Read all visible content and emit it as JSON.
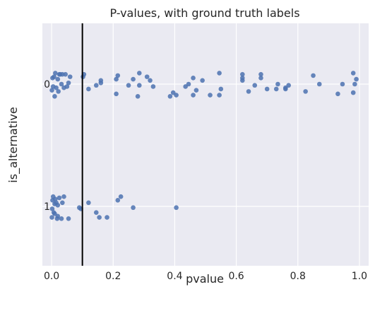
{
  "chart_data": {
    "type": "scatter",
    "title": "P-values, with ground truth labels",
    "xlabel": "pvalue",
    "ylabel": "is_alternative",
    "xlim": [
      -0.03,
      1.03
    ],
    "xticks": [
      0.0,
      0.2,
      0.4,
      0.6,
      0.8,
      1.0
    ],
    "xtick_labels": [
      "0.0",
      "0.2",
      "0.4",
      "0.6",
      "0.8",
      "1.0"
    ],
    "categories": [
      "0",
      "1"
    ],
    "grid": true,
    "background": "#eaeaf2",
    "point_color": "#4c72b0",
    "vline": {
      "x": 0.1,
      "color": "#000000"
    },
    "series": [
      {
        "category": "0",
        "points": [
          [
            0.001,
            0.05
          ],
          [
            0.003,
            -0.05
          ],
          [
            0.005,
            0.02
          ],
          [
            0.008,
            -0.06
          ],
          [
            0.01,
            0.1
          ],
          [
            0.012,
            -0.09
          ],
          [
            0.015,
            0.03
          ],
          [
            0.02,
            -0.04
          ],
          [
            0.022,
            0.06
          ],
          [
            0.025,
            -0.08
          ],
          [
            0.028,
            -0.08
          ],
          [
            0.032,
            0.0
          ],
          [
            0.035,
            -0.08
          ],
          [
            0.04,
            0.03
          ],
          [
            0.045,
            -0.08
          ],
          [
            0.05,
            0.02
          ],
          [
            0.055,
            -0.01
          ],
          [
            0.06,
            -0.06
          ],
          [
            0.102,
            -0.06
          ],
          [
            0.105,
            -0.08
          ],
          [
            0.12,
            0.04
          ],
          [
            0.145,
            0.01
          ],
          [
            0.16,
            -0.03
          ],
          [
            0.21,
            0.08
          ],
          [
            0.215,
            -0.07
          ],
          [
            0.21,
            -0.04
          ],
          [
            0.25,
            0.01
          ],
          [
            0.265,
            -0.04
          ],
          [
            0.28,
            0.1
          ],
          [
            0.285,
            0.01
          ],
          [
            0.285,
            -0.09
          ],
          [
            0.31,
            -0.06
          ],
          [
            0.32,
            -0.03
          ],
          [
            0.33,
            0.02
          ],
          [
            0.385,
            0.1
          ],
          [
            0.395,
            0.07
          ],
          [
            0.405,
            0.09
          ],
          [
            0.435,
            0.02
          ],
          [
            0.445,
            0.0
          ],
          [
            0.46,
            0.09
          ],
          [
            0.47,
            0.05
          ],
          [
            0.49,
            -0.03
          ],
          [
            0.515,
            0.09
          ],
          [
            0.545,
            0.09
          ],
          [
            0.545,
            -0.09
          ],
          [
            0.55,
            0.04
          ],
          [
            0.62,
            -0.03
          ],
          [
            0.62,
            -0.08
          ],
          [
            0.62,
            -0.05
          ],
          [
            0.64,
            0.06
          ],
          [
            0.66,
            0.01
          ],
          [
            0.68,
            -0.08
          ],
          [
            0.68,
            -0.05
          ],
          [
            0.7,
            0.04
          ],
          [
            0.73,
            0.04
          ],
          [
            0.735,
            0.0
          ],
          [
            0.76,
            0.04
          ],
          [
            0.77,
            0.01
          ],
          [
            0.825,
            0.06
          ],
          [
            0.85,
            -0.07
          ],
          [
            0.87,
            0.0
          ],
          [
            0.93,
            0.08
          ],
          [
            0.945,
            0.0
          ],
          [
            0.98,
            0.07
          ],
          [
            0.985,
            0.0
          ],
          [
            0.98,
            -0.09
          ],
          [
            0.99,
            -0.04
          ],
          [
            0.76,
            0.03
          ],
          [
            0.16,
            -0.01
          ],
          [
            0.46,
            -0.05
          ]
        ]
      },
      {
        "category": "1",
        "points": [
          [
            0.001,
            0.09
          ],
          [
            0.002,
            0.02
          ],
          [
            0.003,
            -0.05
          ],
          [
            0.005,
            -0.08
          ],
          [
            0.007,
            0.05
          ],
          [
            0.01,
            -0.02
          ],
          [
            0.012,
            -0.06
          ],
          [
            0.015,
            -0.03
          ],
          [
            0.018,
            0.1
          ],
          [
            0.02,
            -0.01
          ],
          [
            0.025,
            -0.07
          ],
          [
            0.032,
            0.1
          ],
          [
            0.035,
            -0.03
          ],
          [
            0.04,
            -0.08
          ],
          [
            0.055,
            0.1
          ],
          [
            0.09,
            0.01
          ],
          [
            0.095,
            0.02
          ],
          [
            0.145,
            0.05
          ],
          [
            0.12,
            -0.03
          ],
          [
            0.155,
            0.09
          ],
          [
            0.18,
            0.09
          ],
          [
            0.215,
            -0.05
          ],
          [
            0.225,
            -0.08
          ],
          [
            0.265,
            0.01
          ],
          [
            0.405,
            0.01
          ],
          [
            0.02,
            0.08
          ],
          [
            0.01,
            0.06
          ]
        ]
      }
    ]
  }
}
